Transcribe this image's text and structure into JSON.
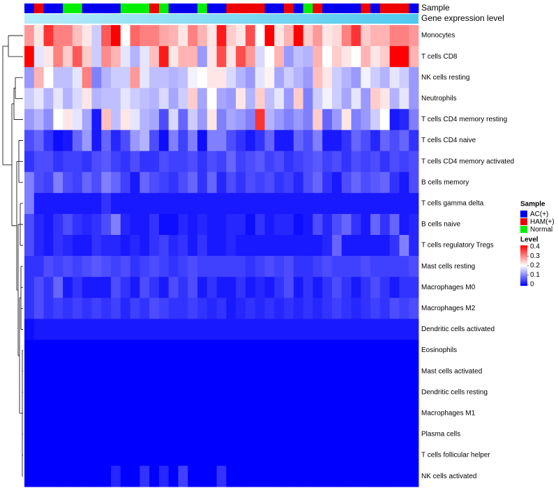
{
  "chart_data": {
    "type": "heatmap",
    "annotation_labels": [
      "Sample",
      "Gene expression level"
    ],
    "sample_groups": [
      "AC",
      "HAM",
      "AC",
      "AC",
      "N",
      "N",
      "AC",
      "AC",
      "AC",
      "AC",
      "N",
      "N",
      "N",
      "HAM",
      "N",
      "AC",
      "AC",
      "AC",
      "N",
      "AC",
      "AC",
      "HAM",
      "HAM",
      "HAM",
      "HAM",
      "AC",
      "AC",
      "HAM",
      "AC",
      "N",
      "HAM",
      "AC",
      "AC",
      "AC",
      "AC",
      "HAM",
      "AC",
      "HAM",
      "HAM",
      "HAM",
      "AC"
    ],
    "gene_expression_row": "light-blue gradient, lighter toward left",
    "rows": [
      {
        "label": "Monocytes",
        "values": [
          0.28,
          0.22,
          0.36,
          0.3,
          0.3,
          0.25,
          0.22,
          0.16,
          0.33,
          0.4,
          0.2,
          0.32,
          0.3,
          0.3,
          0.27,
          0.26,
          0.22,
          0.3,
          0.26,
          0.22,
          0.38,
          0.24,
          0.22,
          0.34,
          0.2,
          0.4,
          0.22,
          0.26,
          0.42,
          0.24,
          0.28,
          0.22,
          0.23,
          0.3,
          0.36,
          0.24,
          0.26,
          0.26,
          0.3,
          0.3,
          0.28
        ]
      },
      {
        "label": "T cells CD8",
        "values": [
          0.4,
          0.18,
          0.22,
          0.3,
          0.24,
          0.33,
          0.24,
          0.16,
          0.29,
          0.26,
          0.18,
          0.14,
          0.18,
          0.25,
          0.38,
          0.22,
          0.26,
          0.26,
          0.12,
          0.22,
          0.34,
          0.22,
          0.34,
          0.28,
          0.17,
          0.2,
          0.26,
          0.12,
          0.15,
          0.14,
          0.26,
          0.2,
          0.24,
          0.22,
          0.2,
          0.26,
          0.22,
          0.24,
          0.4,
          0.4,
          0.26
        ]
      },
      {
        "label": "NK cells resting",
        "values": [
          0.12,
          0.26,
          0.2,
          0.15,
          0.15,
          0.18,
          0.3,
          0.1,
          0.14,
          0.16,
          0.16,
          0.28,
          0.18,
          0.15,
          0.15,
          0.14,
          0.15,
          0.19,
          0.2,
          0.22,
          0.22,
          0.17,
          0.14,
          0.12,
          0.18,
          0.21,
          0.13,
          0.16,
          0.14,
          0.12,
          0.25,
          0.22,
          0.16,
          0.14,
          0.12,
          0.19,
          0.16,
          0.14,
          0.18,
          0.16,
          0.12
        ]
      },
      {
        "label": "Neutrophils",
        "values": [
          0.16,
          0.18,
          0.14,
          0.18,
          0.14,
          0.17,
          0.22,
          0.14,
          0.15,
          0.15,
          0.18,
          0.16,
          0.15,
          0.14,
          0.17,
          0.13,
          0.16,
          0.24,
          0.13,
          0.2,
          0.13,
          0.12,
          0.22,
          0.14,
          0.24,
          0.15,
          0.18,
          0.12,
          0.24,
          0.1,
          0.16,
          0.19,
          0.16,
          0.13,
          0.18,
          0.12,
          0.24,
          0.22,
          0.14,
          0.18,
          0.12
        ]
      },
      {
        "label": "T cells CD4 memory resting",
        "values": [
          0.12,
          0.14,
          0.11,
          0.2,
          0.22,
          0.18,
          0.13,
          0.02,
          0.25,
          0.15,
          0.22,
          0.18,
          0.14,
          0.13,
          0.06,
          0.17,
          0.08,
          0.16,
          0.12,
          0.22,
          0.1,
          0.13,
          0.12,
          0.1,
          0.36,
          0.14,
          0.12,
          0.1,
          0.12,
          0.1,
          0.24,
          0.08,
          0.12,
          0.22,
          0.1,
          0.12,
          0.16,
          0.2,
          0.02,
          0.03,
          0.1
        ]
      },
      {
        "label": "T cells CD4 naive",
        "values": [
          0.06,
          0.08,
          0.04,
          0.01,
          0.02,
          0.08,
          0.12,
          0.02,
          0.08,
          0.03,
          0.06,
          0.12,
          0.14,
          0.06,
          0.01,
          0.1,
          0.05,
          0.1,
          0.01,
          0.1,
          0.1,
          0.06,
          0.04,
          0.02,
          0.04,
          0.08,
          0.02,
          0.02,
          0.08,
          0.06,
          0.1,
          0.02,
          0.02,
          0.04,
          0.08,
          0.06,
          0.03,
          0.08,
          0.06,
          0.08,
          0.04
        ]
      },
      {
        "label": "T cells CD4 memory activated",
        "values": [
          0.04,
          0.06,
          0.06,
          0.04,
          0.05,
          0.05,
          0.04,
          0.06,
          0.07,
          0.05,
          0.04,
          0.06,
          0.04,
          0.04,
          0.06,
          0.05,
          0.05,
          0.06,
          0.04,
          0.06,
          0.05,
          0.08,
          0.05,
          0.06,
          0.07,
          0.05,
          0.06,
          0.04,
          0.05,
          0.06,
          0.07,
          0.05,
          0.06,
          0.04,
          0.06,
          0.05,
          0.06,
          0.04,
          0.06,
          0.05,
          0.06
        ]
      },
      {
        "label": "B cells memory",
        "values": [
          0.1,
          0.06,
          0.05,
          0.1,
          0.06,
          0.05,
          0.08,
          0.06,
          0.1,
          0.08,
          0.05,
          0.02,
          0.08,
          0.06,
          0.05,
          0.04,
          0.06,
          0.08,
          0.04,
          0.08,
          0.03,
          0.06,
          0.04,
          0.06,
          0.05,
          0.06,
          0.04,
          0.05,
          0.03,
          0.06,
          0.08,
          0.04,
          0.02,
          0.06,
          0.08,
          0.06,
          0.07,
          0.08,
          0.04,
          0.02,
          0.06
        ]
      },
      {
        "label": "T cells gamma delta",
        "values": [
          0.1,
          0.02,
          0.02,
          0.02,
          0.02,
          0.02,
          0.02,
          0.02,
          0.04,
          0.02,
          0.02,
          0.02,
          0.02,
          0.02,
          0.02,
          0.02,
          0.02,
          0.02,
          0.02,
          0.02,
          0.02,
          0.02,
          0.02,
          0.02,
          0.02,
          0.02,
          0.02,
          0.02,
          0.02,
          0.02,
          0.02,
          0.02,
          0.02,
          0.02,
          0.02,
          0.02,
          0.02,
          0.02,
          0.02,
          0.02,
          0.02
        ]
      },
      {
        "label": "B cells naive",
        "values": [
          0.06,
          0.03,
          0.02,
          0.04,
          0.06,
          0.04,
          0.03,
          0.04,
          0.06,
          0.1,
          0.03,
          0.02,
          0.02,
          0.04,
          0.01,
          0.01,
          0.03,
          0.02,
          0.03,
          0.02,
          0.02,
          0.03,
          0.03,
          0.01,
          0.04,
          0.02,
          0.03,
          0.03,
          0.01,
          0.02,
          0.06,
          0.03,
          0.06,
          0.08,
          0.04,
          0.02,
          0.08,
          0.04,
          0.08,
          0.02,
          0.03
        ]
      },
      {
        "label": "T cells regulatory  Tregs",
        "values": [
          0.06,
          0.03,
          0.02,
          0.04,
          0.03,
          0.02,
          0.02,
          0.04,
          0.03,
          0.03,
          0.02,
          0.03,
          0.02,
          0.04,
          0.05,
          0.03,
          0.04,
          0.02,
          0.04,
          0.02,
          0.02,
          0.03,
          0.02,
          0.02,
          0.02,
          0.02,
          0.02,
          0.02,
          0.02,
          0.02,
          0.02,
          0.03,
          0.08,
          0.02,
          0.02,
          0.02,
          0.02,
          0.02,
          0.04,
          0.1,
          0.03
        ]
      },
      {
        "label": "Mast cells resting",
        "values": [
          0.04,
          0.04,
          0.06,
          0.05,
          0.06,
          0.05,
          0.06,
          0.07,
          0.06,
          0.05,
          0.06,
          0.04,
          0.05,
          0.06,
          0.05,
          0.04,
          0.05,
          0.06,
          0.05,
          0.05,
          0.05,
          0.05,
          0.05,
          0.04,
          0.05,
          0.06,
          0.05,
          0.06,
          0.04,
          0.04,
          0.05,
          0.06,
          0.05,
          0.05,
          0.05,
          0.06,
          0.05,
          0.05,
          0.05,
          0.05,
          0.06
        ]
      },
      {
        "label": "Macrophages M0",
        "values": [
          0.04,
          0.06,
          0.04,
          0.08,
          0.02,
          0.04,
          0.02,
          0.02,
          0.02,
          0.06,
          0.04,
          0.02,
          0.06,
          0.04,
          0.02,
          0.06,
          0.04,
          0.06,
          0.02,
          0.04,
          0.02,
          0.02,
          0.04,
          0.02,
          0.03,
          0.02,
          0.04,
          0.06,
          0.02,
          0.04,
          0.02,
          0.04,
          0.06,
          0.04,
          0.02,
          0.04,
          0.06,
          0.04,
          0.02,
          0.04,
          0.04
        ]
      },
      {
        "label": "Macrophages M2",
        "values": [
          0.04,
          0.06,
          0.04,
          0.05,
          0.04,
          0.05,
          0.04,
          0.05,
          0.04,
          0.05,
          0.03,
          0.05,
          0.04,
          0.06,
          0.05,
          0.04,
          0.04,
          0.05,
          0.04,
          0.03,
          0.04,
          0.02,
          0.03,
          0.04,
          0.03,
          0.04,
          0.03,
          0.04,
          0.03,
          0.04,
          0.03,
          0.04,
          0.05,
          0.04,
          0.03,
          0.04,
          0.05,
          0.04,
          0.06,
          0.05,
          0.06
        ]
      },
      {
        "label": "Dendritic cells activated",
        "values": [
          0.01,
          0.02,
          0.02,
          0.02,
          0.02,
          0.02,
          0.02,
          0.02,
          0.02,
          0.02,
          0.02,
          0.02,
          0.02,
          0.02,
          0.02,
          0.02,
          0.02,
          0.02,
          0.02,
          0.02,
          0.02,
          0.02,
          0.02,
          0.02,
          0.02,
          0.02,
          0.02,
          0.02,
          0.02,
          0.02,
          0.02,
          0.02,
          0.02,
          0.02,
          0.02,
          0.02,
          0.02,
          0.02,
          0.02,
          0.02,
          0.02
        ]
      },
      {
        "label": "Eosinophils",
        "values": [
          0,
          0,
          0,
          0,
          0,
          0,
          0,
          0,
          0,
          0,
          0,
          0,
          0,
          0,
          0,
          0,
          0,
          0,
          0,
          0,
          0,
          0,
          0,
          0,
          0,
          0,
          0,
          0,
          0,
          0,
          0,
          0,
          0,
          0,
          0,
          0,
          0,
          0,
          0,
          0,
          0
        ]
      },
      {
        "label": "Mast cells activated",
        "values": [
          0,
          0,
          0,
          0,
          0,
          0,
          0,
          0,
          0,
          0,
          0,
          0,
          0,
          0,
          0,
          0,
          0,
          0,
          0,
          0,
          0,
          0,
          0,
          0,
          0,
          0,
          0,
          0,
          0,
          0,
          0,
          0,
          0,
          0,
          0,
          0,
          0,
          0,
          0,
          0,
          0
        ]
      },
      {
        "label": "Dendritic cells resting",
        "values": [
          0,
          0,
          0,
          0,
          0,
          0,
          0,
          0,
          0,
          0,
          0,
          0,
          0,
          0,
          0,
          0,
          0,
          0,
          0,
          0,
          0,
          0,
          0,
          0,
          0,
          0,
          0,
          0,
          0,
          0,
          0,
          0,
          0,
          0,
          0,
          0,
          0,
          0,
          0,
          0,
          0
        ]
      },
      {
        "label": "Macrophages M1",
        "values": [
          0,
          0,
          0,
          0,
          0,
          0,
          0,
          0,
          0,
          0,
          0,
          0,
          0,
          0,
          0,
          0,
          0,
          0,
          0,
          0,
          0,
          0,
          0,
          0,
          0,
          0,
          0,
          0,
          0,
          0,
          0,
          0,
          0,
          0,
          0,
          0,
          0,
          0,
          0,
          0,
          0
        ]
      },
      {
        "label": "Plasma cells",
        "values": [
          0,
          0,
          0,
          0,
          0,
          0,
          0,
          0,
          0,
          0,
          0,
          0,
          0,
          0,
          0,
          0,
          0,
          0,
          0,
          0,
          0,
          0,
          0,
          0,
          0,
          0,
          0,
          0,
          0,
          0,
          0,
          0,
          0,
          0,
          0,
          0,
          0,
          0,
          0,
          0,
          0
        ]
      },
      {
        "label": "T cells follicular helper",
        "values": [
          0,
          0,
          0,
          0,
          0,
          0,
          0,
          0,
          0,
          0,
          0,
          0,
          0,
          0,
          0,
          0,
          0,
          0,
          0,
          0,
          0,
          0,
          0,
          0,
          0,
          0,
          0,
          0,
          0,
          0,
          0,
          0,
          0,
          0,
          0,
          0,
          0,
          0,
          0,
          0,
          0
        ]
      },
      {
        "label": "NK cells activated",
        "values": [
          0,
          0,
          0,
          0,
          0,
          0,
          0,
          0,
          0,
          0.03,
          0,
          0,
          0.04,
          0,
          0.03,
          0,
          0.05,
          0,
          0,
          0,
          0.04,
          0,
          0,
          0,
          0,
          0,
          0,
          0,
          0,
          0,
          0,
          0,
          0,
          0,
          0,
          0,
          0,
          0,
          0,
          0,
          0
        ]
      }
    ],
    "legend": {
      "sample_title": "Sample",
      "sample_items": [
        {
          "key": "AC",
          "label": "AC(+)",
          "color": "#0000ee"
        },
        {
          "key": "HAM",
          "label": "HAM(+)",
          "color": "#ee0000"
        },
        {
          "key": "N",
          "label": "Normal",
          "color": "#00ee00"
        }
      ],
      "level_title": "Level",
      "level_ticks": [
        "0.4",
        "0.3",
        "0.2",
        "0.1",
        "0"
      ],
      "level_range": [
        0,
        0.4
      ]
    },
    "colors": {
      "low": "#0000ff",
      "mid": "#ffffff",
      "high": "#ff0000",
      "gene_light": "#b8ecf8",
      "gene_dark": "#4ec8ee"
    }
  }
}
